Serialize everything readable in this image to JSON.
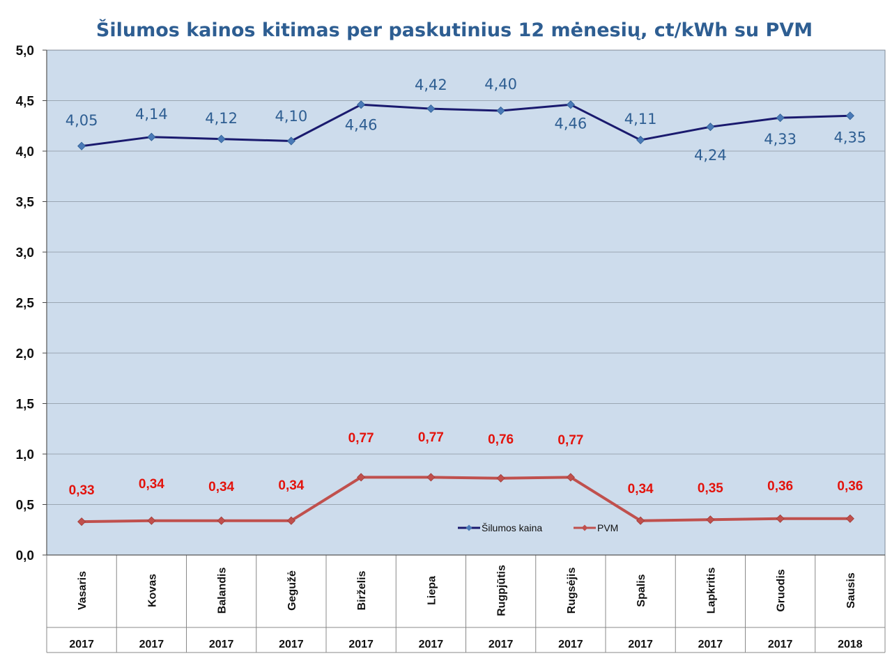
{
  "chart_data": {
    "type": "line",
    "title": "Šilumos kainos kitimas per paskutinius 12 mėnesių, ct/kWh su PVM",
    "categories": [
      "Vasaris",
      "Kovas",
      "Balandis",
      "Gegužė",
      "Birželis",
      "Liepa",
      "Rugpjūtis",
      "Rugsėjis",
      "Spalis",
      "Lapkritis",
      "Gruodis",
      "Sausis"
    ],
    "years": [
      "2017",
      "2017",
      "2017",
      "2017",
      "2017",
      "2017",
      "2017",
      "2017",
      "2017",
      "2017",
      "2017",
      "2018"
    ],
    "series": [
      {
        "name": "Šilumos kaina",
        "values": [
          4.05,
          4.14,
          4.12,
          4.1,
          4.46,
          4.42,
          4.4,
          4.46,
          4.11,
          4.24,
          4.33,
          4.35
        ],
        "labels": [
          "4,05",
          "4,14",
          "4,12",
          "4,10",
          "4,46",
          "4,42",
          "4,40",
          "4,46",
          "4,11",
          "4,24",
          "4,33",
          "4,35"
        ],
        "color": "#1a1a6e",
        "label_color": "#2e5e92"
      },
      {
        "name": "PVM",
        "values": [
          0.33,
          0.34,
          0.34,
          0.34,
          0.77,
          0.77,
          0.76,
          0.77,
          0.34,
          0.35,
          0.36,
          0.36
        ],
        "labels": [
          "0,33",
          "0,34",
          "0,34",
          "0,34",
          "0,77",
          "0,77",
          "0,76",
          "0,77",
          "0,34",
          "0,35",
          "0,36",
          "0,36"
        ],
        "color": "#c0504d",
        "label_color": "#e3130c"
      }
    ],
    "ylim": [
      0,
      5
    ],
    "yticks": [
      "0,0",
      "0,5",
      "1,0",
      "1,5",
      "2,0",
      "2,5",
      "3,0",
      "3,5",
      "4,0",
      "4,5",
      "5,0"
    ],
    "xlabel": "",
    "ylabel": "",
    "grid": true,
    "legend_position": "lower-right",
    "colors": {
      "title": "#2e5e92",
      "plot_bg": "#cddcec",
      "grid": "#9aa6b2"
    }
  }
}
